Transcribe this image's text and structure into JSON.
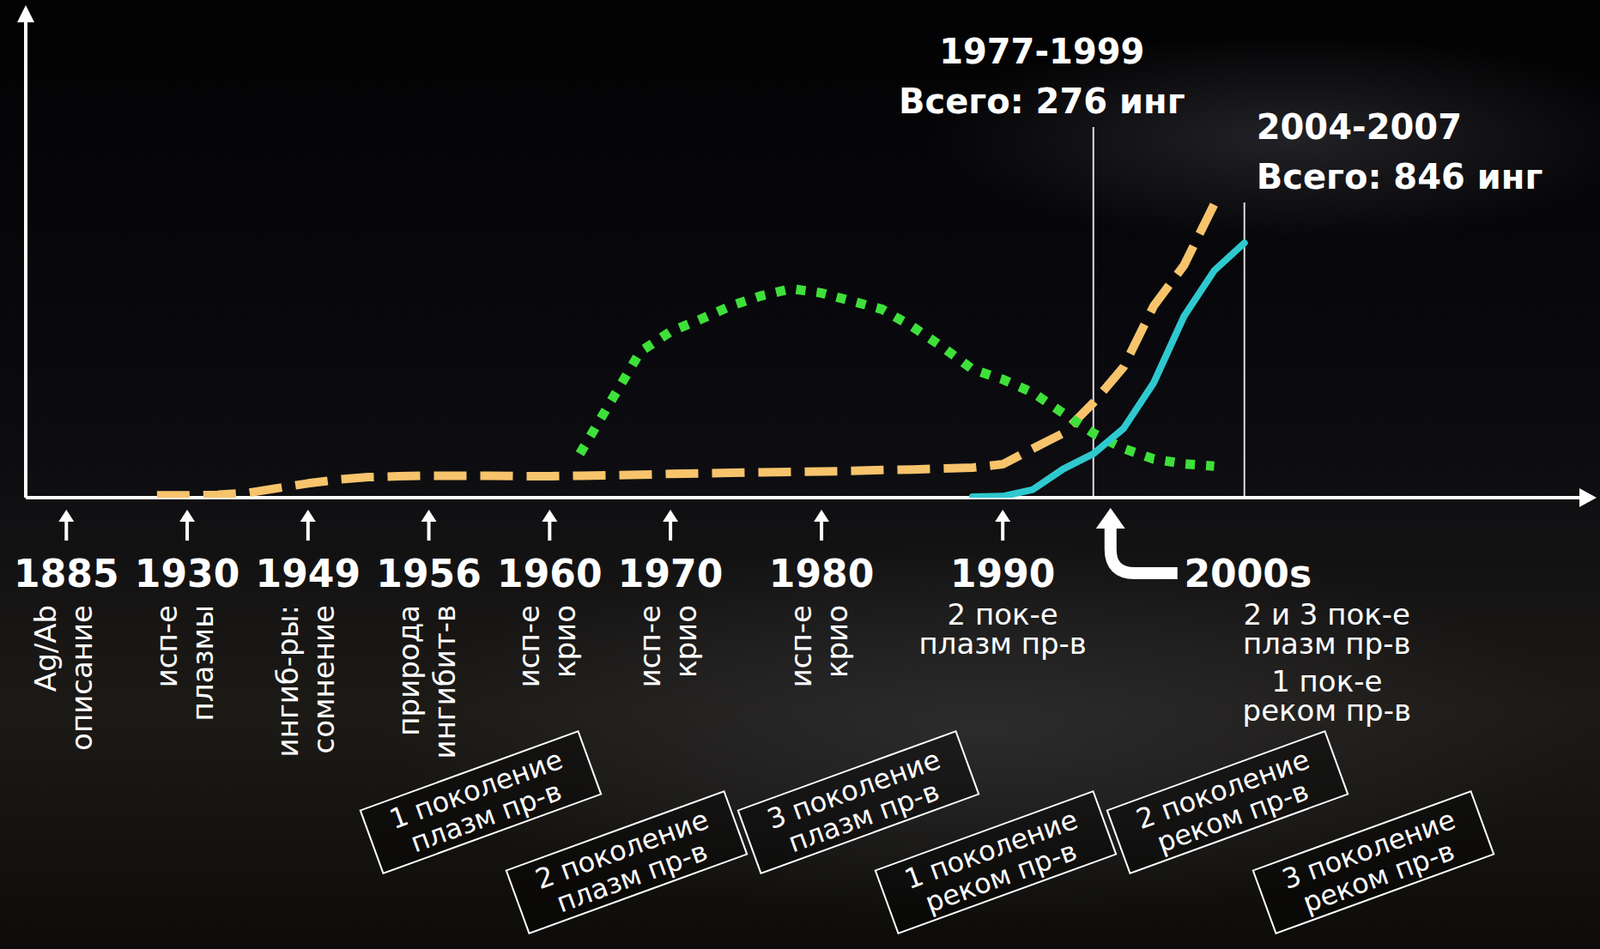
{
  "chart_data": {
    "type": "line",
    "categories": [
      "1885",
      null,
      null,
      null,
      "1930",
      null,
      null,
      null,
      "1949",
      null,
      null,
      null,
      "1956",
      null,
      null,
      null,
      "1960",
      null,
      null,
      null,
      "1970",
      null,
      null,
      null,
      null,
      "1980",
      null,
      null,
      null,
      null,
      null,
      "1990",
      null,
      null,
      "2000s",
      null,
      null,
      null,
      null,
      null
    ],
    "ylim": [
      0,
      100
    ],
    "yticks": [],
    "grid": false,
    "tick_labels": "x",
    "series": [
      {
        "color": "#f7c46c",
        "line_style": "dashed",
        "values": [
          null,
          null,
          null,
          0.5,
          0.5,
          0.6,
          1.0,
          2.0,
          3.0,
          3.8,
          4.3,
          4.5,
          4.6,
          4.6,
          4.6,
          4.5,
          4.5,
          4.6,
          4.7,
          4.8,
          5.0,
          5.1,
          5.2,
          5.3,
          5.4,
          5.5,
          5.6,
          5.8,
          5.9,
          6.1,
          6.3,
          7.0,
          10.3,
          13.5,
          19.9,
          27.4,
          40.2,
          48.7,
          61.5,
          null
        ]
      },
      {
        "color": "#3ee03a",
        "line_style": "dotted",
        "values": [
          null,
          null,
          null,
          null,
          null,
          null,
          null,
          null,
          null,
          null,
          null,
          null,
          null,
          null,
          null,
          null,
          null,
          9.2,
          19.9,
          30.6,
          34.8,
          37.4,
          40.2,
          42.3,
          43.8,
          42.9,
          41.2,
          39.5,
          35.9,
          31.6,
          26.9,
          24.8,
          22.0,
          17.7,
          13.5,
          10.3,
          8.1,
          7.1,
          6.6,
          null
        ]
      },
      {
        "color": "#2ec9cf",
        "line_style": "solid",
        "values": [
          null,
          null,
          null,
          null,
          null,
          null,
          null,
          null,
          null,
          null,
          null,
          null,
          null,
          null,
          null,
          null,
          null,
          null,
          null,
          null,
          null,
          null,
          null,
          null,
          null,
          null,
          null,
          null,
          null,
          null,
          0.2,
          0.3,
          1.7,
          6.0,
          9.2,
          14.5,
          24.1,
          38.0,
          47.6,
          53.4
        ]
      }
    ],
    "annotations": [
      {
        "at": 0,
        "lines": [
          "Ag/Ab",
          "описание"
        ]
      },
      {
        "at": 4,
        "lines": [
          "исп-е",
          "плазмы"
        ]
      },
      {
        "at": 8,
        "lines": [
          "ингиб-ры:",
          "сомнение"
        ]
      },
      {
        "at": 12,
        "lines": [
          "природа",
          "ингибит-в"
        ]
      },
      {
        "at": 16,
        "lines": [
          "исп-е",
          "крио"
        ]
      },
      {
        "at": 20,
        "lines": [
          "исп-е",
          "крио"
        ]
      },
      {
        "at": 25,
        "lines": [
          "исп-е",
          "крио"
        ]
      }
    ],
    "notes": [
      {
        "at": 31,
        "lines": [
          "2 пок-е",
          "плазм пр-в"
        ]
      },
      {
        "at": 34,
        "lines": [
          "2 и 3 пок-е",
          "плазм пр-в",
          "1 пок-е",
          "реком пр-в"
        ]
      }
    ],
    "periods": [
      {
        "at": 34,
        "lines": [
          "1977-1999",
          "Всего: 276 инг"
        ]
      },
      {
        "at": 39,
        "lines": [
          "2004-2007",
          "Всего: 846 инг"
        ]
      }
    ],
    "generations": [
      [
        "1 поколение",
        "плазм пр-в"
      ],
      [
        "2 поколение",
        "плазм пр-в"
      ],
      [
        "3 поколение",
        "плазм пр-в"
      ],
      [
        "1 поколение",
        "реком пр-в"
      ],
      [
        "2 поколение",
        "реком пр-в"
      ],
      [
        "3 поколение",
        "реком пр-в"
      ]
    ]
  }
}
